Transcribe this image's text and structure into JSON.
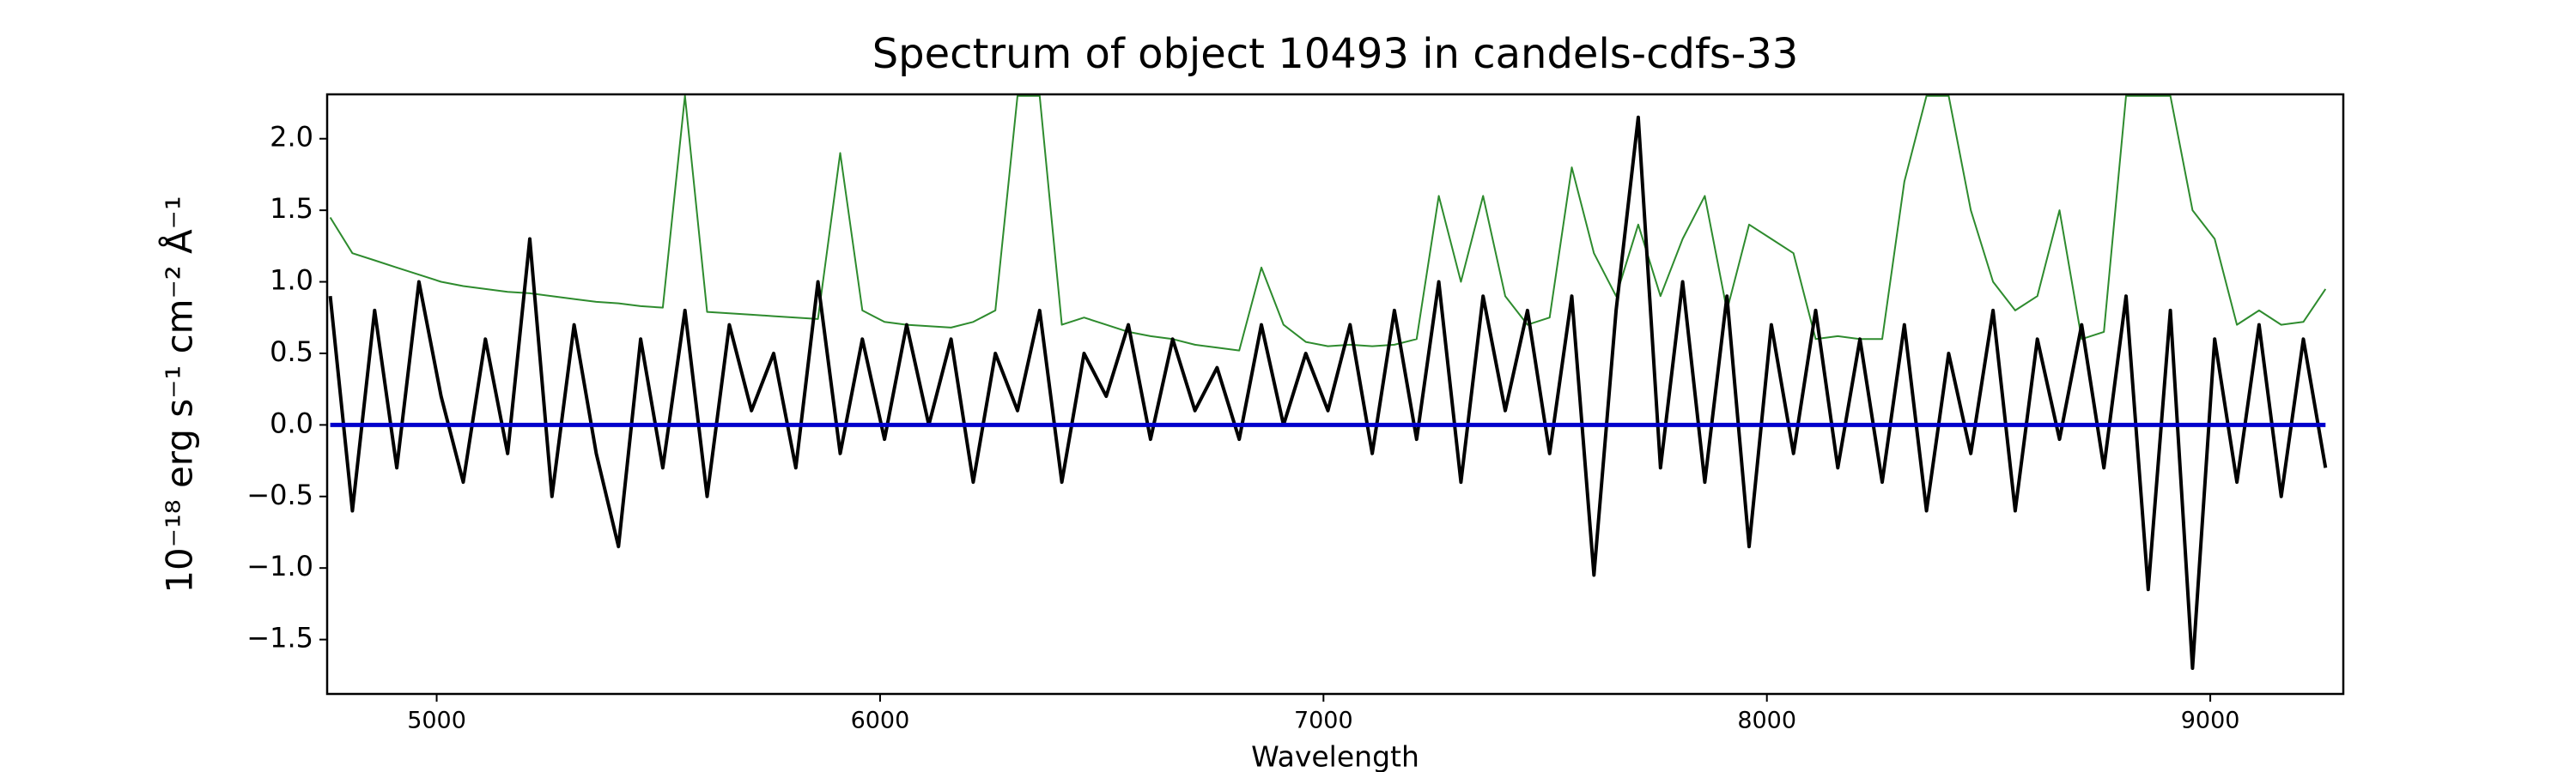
{
  "chart_data": {
    "type": "line",
    "title": "Spectrum of object 10493 in candels-cdfs-33",
    "x_label": "Wavelength",
    "y_label": "10⁻¹⁸ erg s⁻¹ cm⁻² Å⁻¹",
    "xlim": [
      4753,
      9300
    ],
    "ylim": [
      -1.88,
      2.31
    ],
    "xticks": [
      5000,
      6000,
      7000,
      8000,
      9000
    ],
    "yticks": [
      {
        "value": -1.5,
        "label": "−1.5"
      },
      {
        "value": -1.0,
        "label": "−1.0"
      },
      {
        "value": -0.5,
        "label": "−0.5"
      },
      {
        "value": 0,
        "label": "0.0"
      },
      0.5,
      {
        "value": 1,
        "label": "1.0"
      },
      1.5,
      {
        "value": 2,
        "label": "2.0"
      }
    ],
    "x": [
      4760,
      4810,
      4860,
      4910,
      4960,
      5010,
      5060,
      5110,
      5160,
      5210,
      5260,
      5310,
      5360,
      5410,
      5460,
      5510,
      5560,
      5610,
      5660,
      5710,
      5760,
      5810,
      5860,
      5910,
      5960,
      6010,
      6060,
      6110,
      6160,
      6210,
      6260,
      6310,
      6360,
      6410,
      6460,
      6510,
      6560,
      6610,
      6660,
      6710,
      6760,
      6810,
      6860,
      6910,
      6960,
      7010,
      7060,
      7110,
      7160,
      7210,
      7260,
      7310,
      7360,
      7410,
      7460,
      7510,
      7560,
      7610,
      7660,
      7710,
      7760,
      7810,
      7860,
      7910,
      7960,
      8010,
      8060,
      8110,
      8160,
      8210,
      8260,
      8310,
      8360,
      8410,
      8460,
      8510,
      8560,
      8610,
      8660,
      8710,
      8760,
      8810,
      8860,
      8910,
      8960,
      9010,
      9060,
      9110,
      9160,
      9210,
      9260
    ],
    "series": [
      {
        "color": "#2e8b2e",
        "width": 2,
        "values": [
          1.45,
          1.2,
          1.15,
          1.1,
          1.05,
          1.0,
          0.97,
          0.95,
          0.93,
          0.92,
          0.9,
          0.88,
          0.86,
          0.85,
          0.83,
          0.82,
          2.3,
          0.79,
          0.78,
          0.77,
          0.76,
          0.75,
          0.74,
          1.9,
          0.8,
          0.72,
          0.7,
          0.69,
          0.68,
          0.72,
          0.8,
          2.3,
          2.3,
          0.7,
          0.75,
          0.7,
          0.65,
          0.62,
          0.6,
          0.56,
          0.54,
          0.52,
          1.1,
          0.7,
          0.58,
          0.55,
          0.56,
          0.55,
          0.56,
          0.6,
          1.6,
          1.0,
          1.6,
          0.9,
          0.7,
          0.75,
          1.8,
          1.2,
          0.9,
          1.4,
          0.9,
          1.3,
          1.6,
          0.8,
          1.4,
          1.3,
          1.2,
          0.6,
          0.62,
          0.6,
          0.6,
          1.7,
          2.3,
          2.3,
          1.5,
          1.0,
          0.8,
          0.9,
          1.5,
          0.6,
          0.65,
          2.3,
          2.3,
          2.3,
          1.5,
          1.3,
          0.7,
          0.8,
          0.7,
          0.72,
          0.95
        ]
      },
      {
        "color": "#000000",
        "width": 4,
        "values": [
          0.9,
          -0.6,
          0.8,
          -0.3,
          1.0,
          0.2,
          -0.4,
          0.6,
          -0.2,
          1.3,
          -0.5,
          0.7,
          -0.2,
          -0.85,
          0.6,
          -0.3,
          0.8,
          -0.5,
          0.7,
          0.1,
          0.5,
          -0.3,
          1.0,
          -0.2,
          0.6,
          -0.1,
          0.7,
          0.0,
          0.6,
          -0.4,
          0.5,
          0.1,
          0.8,
          -0.4,
          0.5,
          0.2,
          0.7,
          -0.1,
          0.6,
          0.1,
          0.4,
          -0.1,
          0.7,
          0.0,
          0.5,
          0.1,
          0.7,
          -0.2,
          0.8,
          -0.1,
          1.0,
          -0.4,
          0.9,
          0.1,
          0.8,
          -0.2,
          0.9,
          -1.05,
          0.8,
          2.15,
          -0.3,
          1.0,
          -0.4,
          0.9,
          -0.85,
          0.7,
          -0.2,
          0.8,
          -0.3,
          0.6,
          -0.4,
          0.7,
          -0.6,
          0.5,
          -0.2,
          0.8,
          -0.6,
          0.6,
          -0.1,
          0.7,
          -0.3,
          0.9,
          -1.15,
          0.8,
          -1.7,
          0.6,
          -0.4,
          0.7,
          -0.5,
          0.6,
          -0.3
        ]
      },
      {
        "color": "#0000cc",
        "width": 5,
        "values": [
          0,
          0,
          0,
          0,
          0,
          0,
          0,
          0,
          0,
          0,
          0,
          0,
          0,
          0,
          0,
          0,
          0,
          0,
          0,
          0,
          0,
          0,
          0,
          0,
          0,
          0,
          0,
          0,
          0,
          0,
          0,
          0,
          0,
          0,
          0,
          0,
          0,
          0,
          0,
          0,
          0,
          0,
          0,
          0,
          0,
          0,
          0,
          0,
          0,
          0,
          0,
          0,
          0,
          0,
          0,
          0,
          0,
          0,
          0,
          0,
          0,
          0,
          0,
          0,
          0,
          0,
          0,
          0,
          0,
          0,
          0,
          0,
          0,
          0,
          0,
          0,
          0,
          0,
          0,
          0,
          0,
          0,
          0,
          0,
          0,
          0,
          0,
          0,
          0,
          0,
          0
        ]
      }
    ]
  }
}
